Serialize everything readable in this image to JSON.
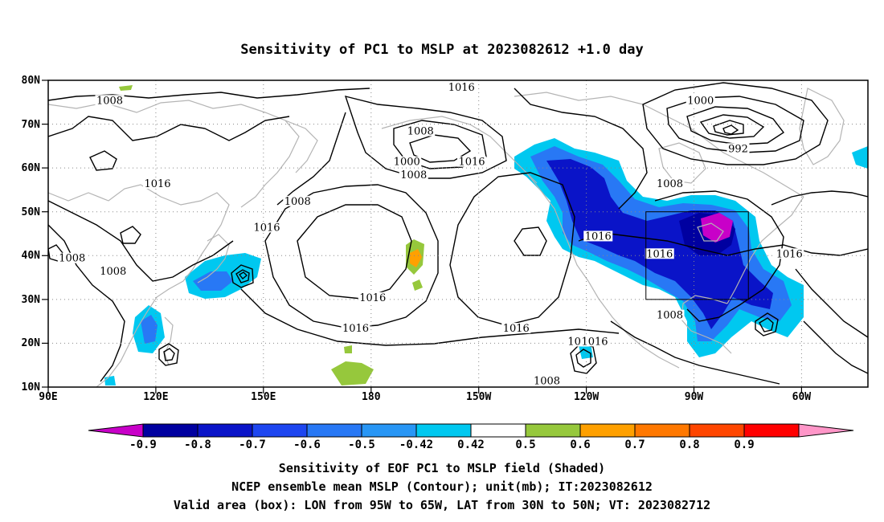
{
  "title": "Sensitivity of PC1 to MSLP at 2023082612 +1.0 day",
  "lat_ticks": [
    "80N",
    "70N",
    "60N",
    "50N",
    "40N",
    "30N",
    "20N",
    "10N"
  ],
  "lon_ticks": [
    "90E",
    "120E",
    "150E",
    "180",
    "150W",
    "120W",
    "90W",
    "60W"
  ],
  "contour_labels": [
    {
      "text": "1008",
      "lon": 108,
      "lat": 75
    },
    {
      "text": "1016",
      "lon": 211,
      "lat": 78
    },
    {
      "text": "1008",
      "lon": 199,
      "lat": 68
    },
    {
      "text": "1000",
      "lon": 195,
      "lat": 61
    },
    {
      "text": "1008",
      "lon": 197,
      "lat": 58
    },
    {
      "text": "1016",
      "lon": 214,
      "lat": 61
    },
    {
      "text": "1000",
      "lon": 281,
      "lat": 75
    },
    {
      "text": "992",
      "lon": 292,
      "lat": 64
    },
    {
      "text": "1008",
      "lon": 272,
      "lat": 56
    },
    {
      "text": "1016",
      "lon": 122,
      "lat": 56
    },
    {
      "text": "1008",
      "lon": 163,
      "lat": 52
    },
    {
      "text": "1016",
      "lon": 154,
      "lat": 46
    },
    {
      "text": "1008",
      "lon": 97,
      "lat": 39
    },
    {
      "text": "1008",
      "lon": 109,
      "lat": 36
    },
    {
      "text": "1016",
      "lon": 251,
      "lat": 44
    },
    {
      "text": "1016",
      "lon": 269,
      "lat": 40
    },
    {
      "text": "1016",
      "lon": 307,
      "lat": 40
    },
    {
      "text": "1016",
      "lon": 185,
      "lat": 30
    },
    {
      "text": "1016",
      "lon": 180,
      "lat": 23
    },
    {
      "text": "1016",
      "lon": 227,
      "lat": 23
    },
    {
      "text": "1008",
      "lon": 272,
      "lat": 26
    },
    {
      "text": "100",
      "lon": 245,
      "lat": 20
    },
    {
      "text": "1016",
      "lon": 250,
      "lat": 20
    },
    {
      "text": "1008",
      "lon": 236,
      "lat": 11
    }
  ],
  "colorbar": {
    "colors": [
      "#c800c8",
      "#0000a0",
      "#0a14c8",
      "#1e46f0",
      "#2878f5",
      "#2896f5",
      "#00c8f0",
      "#ffffff",
      "#96c83c",
      "#ffa000",
      "#ff7800",
      "#ff4600",
      "#ff0000",
      "#ff96c8"
    ],
    "labels": [
      "-0.9",
      "-0.8",
      "-0.7",
      "-0.6",
      "-0.5",
      "-0.42",
      "0.42",
      "0.5",
      "0.6",
      "0.7",
      "0.8",
      "0.9"
    ]
  },
  "valid_box": {
    "lon_min": 265,
    "lon_max": 295,
    "lat_min": 30,
    "lat_max": 50
  },
  "caption": {
    "line1": "Sensitivity of EOF PC1 to MSLP field (Shaded)",
    "line2": "NCEP ensemble mean MSLP (Contour); unit(mb); IT:2023082612",
    "line3": "Valid area (box): LON from 95W to 65W, LAT from 30N to 50N; VT: 2023082712"
  }
}
